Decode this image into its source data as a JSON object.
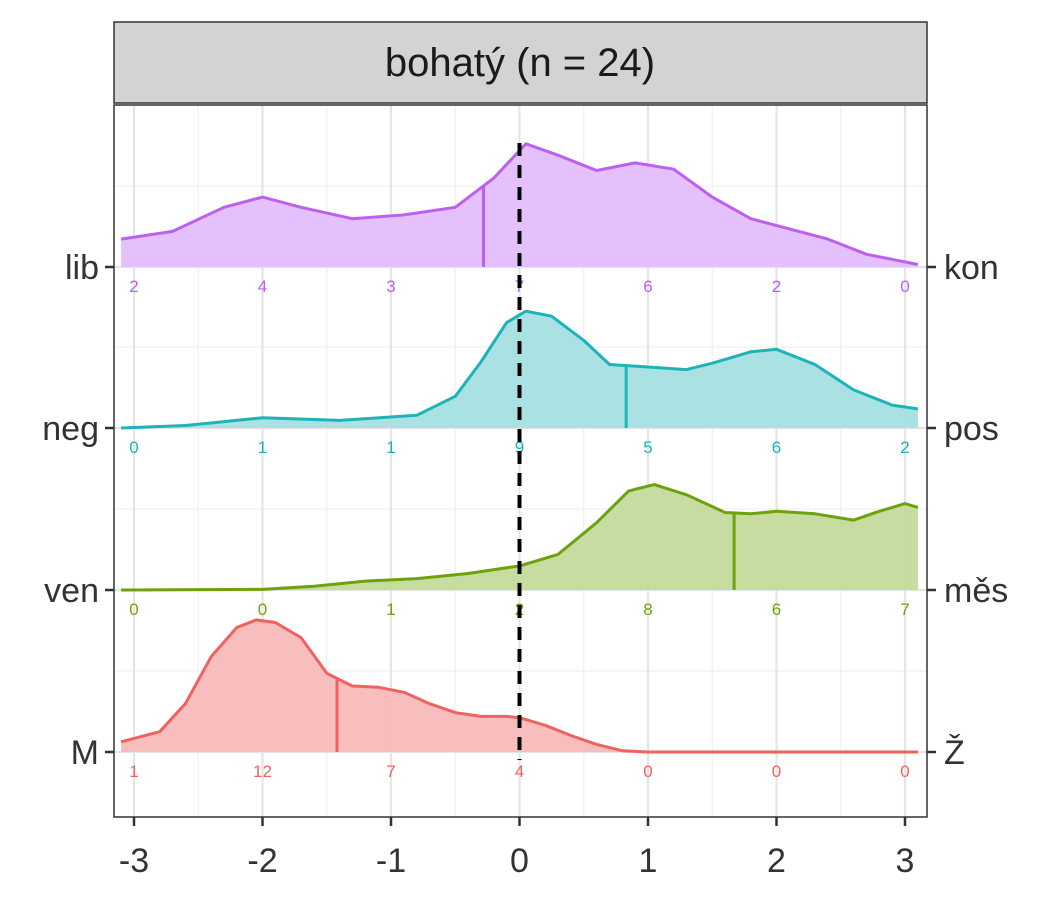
{
  "chart_data": {
    "type": "area",
    "title": "",
    "facet_label": "bohatý (n = 24)",
    "xlabel": "",
    "ylabel": "",
    "xlim": [
      -3.1,
      3.1
    ],
    "x_ticks": [
      -3,
      -2,
      -1,
      0,
      1,
      2,
      3
    ],
    "x_tick_labels": [
      "-3",
      "-2",
      "-1",
      "0",
      "1",
      "2",
      "3"
    ],
    "reference_line_x": 0,
    "grid": true,
    "legend": "none",
    "count_positions": [
      -3,
      -2,
      -1,
      0,
      1,
      2,
      3
    ],
    "series": [
      {
        "left_label": "M",
        "right_label": "Ž",
        "color": "#F0625F",
        "fill": "#F8BABA",
        "mean": -1.42,
        "counts": [
          1,
          12,
          7,
          4,
          0,
          0,
          0
        ],
        "density": [
          [
            -3.1,
            0.08
          ],
          [
            -2.8,
            0.16
          ],
          [
            -2.6,
            0.38
          ],
          [
            -2.4,
            0.75
          ],
          [
            -2.2,
            0.98
          ],
          [
            -2.05,
            1.04
          ],
          [
            -1.9,
            1.02
          ],
          [
            -1.7,
            0.9
          ],
          [
            -1.5,
            0.62
          ],
          [
            -1.3,
            0.52
          ],
          [
            -1.1,
            0.51
          ],
          [
            -0.9,
            0.47
          ],
          [
            -0.7,
            0.38
          ],
          [
            -0.5,
            0.31
          ],
          [
            -0.3,
            0.28
          ],
          [
            -0.1,
            0.28
          ],
          [
            0.0,
            0.27
          ],
          [
            0.2,
            0.21
          ],
          [
            0.4,
            0.13
          ],
          [
            0.6,
            0.06
          ],
          [
            0.8,
            0.01
          ],
          [
            1.0,
            0.0
          ],
          [
            3.1,
            0.0
          ]
        ]
      },
      {
        "left_label": "ven",
        "right_label": "měs",
        "color": "#6EA20C",
        "fill": "#C4DA9B",
        "mean": 1.67,
        "counts": [
          0,
          0,
          1,
          2,
          8,
          6,
          7
        ],
        "density": [
          [
            -3.1,
            0.0
          ],
          [
            -2.0,
            0.005
          ],
          [
            -1.6,
            0.03
          ],
          [
            -1.2,
            0.07
          ],
          [
            -0.8,
            0.09
          ],
          [
            -0.4,
            0.13
          ],
          [
            0.0,
            0.19
          ],
          [
            0.3,
            0.28
          ],
          [
            0.6,
            0.53
          ],
          [
            0.85,
            0.78
          ],
          [
            1.05,
            0.83
          ],
          [
            1.3,
            0.75
          ],
          [
            1.6,
            0.61
          ],
          [
            1.8,
            0.6
          ],
          [
            2.0,
            0.62
          ],
          [
            2.3,
            0.6
          ],
          [
            2.6,
            0.55
          ],
          [
            2.8,
            0.62
          ],
          [
            3.0,
            0.68
          ],
          [
            3.1,
            0.65
          ]
        ]
      },
      {
        "left_label": "neg",
        "right_label": "pos",
        "color": "#1DB3B8",
        "fill": "#A5E0E1",
        "mean": 0.83,
        "counts": [
          0,
          1,
          1,
          9,
          5,
          6,
          2
        ],
        "density": [
          [
            -3.1,
            0.0
          ],
          [
            -2.6,
            0.02
          ],
          [
            -2.0,
            0.08
          ],
          [
            -1.4,
            0.06
          ],
          [
            -0.8,
            0.1
          ],
          [
            -0.5,
            0.25
          ],
          [
            -0.3,
            0.52
          ],
          [
            -0.1,
            0.83
          ],
          [
            0.05,
            0.92
          ],
          [
            0.25,
            0.88
          ],
          [
            0.5,
            0.69
          ],
          [
            0.7,
            0.5
          ],
          [
            1.0,
            0.48
          ],
          [
            1.3,
            0.46
          ],
          [
            1.5,
            0.51
          ],
          [
            1.8,
            0.6
          ],
          [
            2.0,
            0.62
          ],
          [
            2.3,
            0.5
          ],
          [
            2.6,
            0.3
          ],
          [
            2.9,
            0.18
          ],
          [
            3.1,
            0.15
          ]
        ]
      },
      {
        "left_label": "lib",
        "right_label": "kon",
        "color": "#BD60F0",
        "fill": "#E3BEFC",
        "mean": -0.28,
        "counts": [
          2,
          4,
          3,
          7,
          6,
          2,
          0
        ],
        "density": [
          [
            -3.1,
            0.22
          ],
          [
            -2.7,
            0.28
          ],
          [
            -2.3,
            0.47
          ],
          [
            -2.0,
            0.55
          ],
          [
            -1.7,
            0.47
          ],
          [
            -1.3,
            0.38
          ],
          [
            -0.9,
            0.41
          ],
          [
            -0.5,
            0.47
          ],
          [
            -0.2,
            0.7
          ],
          [
            0.05,
            0.97
          ],
          [
            0.3,
            0.88
          ],
          [
            0.6,
            0.76
          ],
          [
            0.9,
            0.82
          ],
          [
            1.2,
            0.77
          ],
          [
            1.5,
            0.55
          ],
          [
            1.8,
            0.38
          ],
          [
            2.1,
            0.3
          ],
          [
            2.4,
            0.22
          ],
          [
            2.7,
            0.1
          ],
          [
            3.1,
            0.02
          ]
        ]
      }
    ]
  }
}
